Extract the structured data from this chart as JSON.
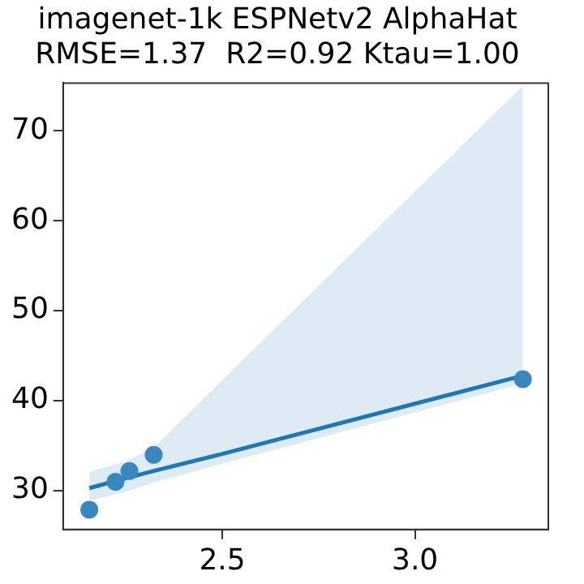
{
  "chart_data": {
    "type": "scatter",
    "title": "imagenet-1k ESPNetv2 AlphaHat",
    "subtitle": "RMSE=1.37  R2=0.92 Ktau=1.00",
    "xlim": [
      2.087,
      3.346
    ],
    "ylim": [
      25.7,
      75.3
    ],
    "xticks": [
      2.5,
      {
        "value": 3,
        "label": "3.0"
      }
    ],
    "yticks": [
      30,
      40,
      50,
      60,
      70
    ],
    "grid": false,
    "legend": false,
    "series": [
      {
        "type": "scatter",
        "color": "#3a87c0",
        "marker": "circle",
        "x": [
          2.155,
          2.223,
          2.259,
          2.322,
          3.28
        ],
        "values": [
          27.9,
          31.0,
          32.2,
          34.0,
          42.4
        ]
      },
      {
        "type": "line",
        "color": "#1f77b4",
        "x": [
          2.155,
          2.25,
          2.322,
          2.5,
          3.28
        ],
        "values": [
          30.3,
          31.4,
          32.2,
          34.1,
          42.8
        ],
        "lower": [
          28.9,
          29.9,
          30.9,
          33.0,
          41.9
        ],
        "upper": [
          32.1,
          33.3,
          34.8,
          42.3,
          75.0
        ]
      }
    ]
  }
}
